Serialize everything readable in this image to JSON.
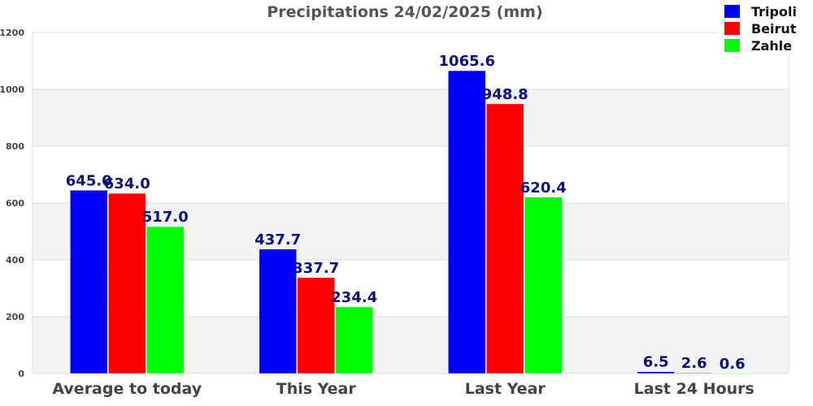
{
  "chart_data": {
    "type": "bar",
    "title": "Precipitations 24/02/2025 (mm)",
    "xlabel": "",
    "ylabel": "",
    "ylim": [
      0,
      1200
    ],
    "yticks": [
      0,
      200,
      400,
      600,
      800,
      1000,
      1200
    ],
    "grid": "horizontal, alternating bands",
    "legend_position": "top-right",
    "categories": [
      "Average to today",
      "This Year",
      "Last Year",
      "Last 24 Hours"
    ],
    "series": [
      {
        "name": "Tripoli",
        "color": "#0000ff",
        "values": [
          645.0,
          437.7,
          1065.6,
          6.5
        ],
        "labels": [
          "645.0",
          "437.7",
          "1065.6",
          "6.5"
        ]
      },
      {
        "name": "Beirut",
        "color": "#ff0000",
        "values": [
          634.0,
          337.7,
          948.8,
          2.6
        ],
        "labels": [
          "634.0",
          "337.7",
          "948.8",
          "2.6"
        ]
      },
      {
        "name": "Zahle",
        "color": "#00ff00",
        "values": [
          517.0,
          234.4,
          620.4,
          0.6
        ],
        "labels": [
          "517.0",
          "234.4",
          "620.4",
          "0.6"
        ]
      }
    ]
  }
}
